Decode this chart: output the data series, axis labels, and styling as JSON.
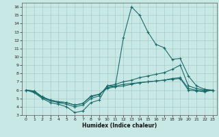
{
  "xlabel": "Humidex (Indice chaleur)",
  "x_ticks": [
    0,
    1,
    2,
    3,
    4,
    5,
    6,
    7,
    8,
    9,
    10,
    11,
    12,
    13,
    14,
    15,
    16,
    17,
    18,
    19,
    20,
    21,
    22,
    23
  ],
  "xlim": [
    -0.5,
    23.5
  ],
  "ylim": [
    3,
    16.5
  ],
  "y_ticks": [
    3,
    4,
    5,
    6,
    7,
    8,
    9,
    10,
    11,
    12,
    13,
    14,
    15,
    16
  ],
  "bg_color": "#c8e8e5",
  "grid_color": "#a8ccc9",
  "line_color": "#1a6b6b",
  "lines": [
    [
      6.0,
      5.7,
      5.0,
      4.5,
      4.3,
      4.0,
      3.3,
      3.5,
      4.5,
      4.8,
      6.5,
      6.5,
      12.3,
      16.0,
      15.0,
      13.0,
      11.5,
      11.1,
      9.7,
      9.8,
      7.7,
      6.5,
      6.1,
      6.0
    ],
    [
      6.0,
      5.8,
      5.1,
      4.7,
      4.5,
      4.3,
      4.0,
      4.2,
      5.0,
      5.3,
      6.5,
      6.7,
      7.0,
      7.2,
      7.5,
      7.7,
      7.9,
      8.1,
      8.5,
      9.0,
      6.5,
      6.2,
      6.0,
      6.0
    ],
    [
      6.0,
      5.9,
      5.2,
      4.8,
      4.6,
      4.5,
      4.2,
      4.4,
      5.2,
      5.5,
      6.2,
      6.4,
      6.5,
      6.7,
      6.9,
      7.0,
      7.1,
      7.2,
      7.4,
      7.5,
      6.2,
      6.0,
      5.9,
      6.0
    ],
    [
      6.0,
      5.9,
      5.2,
      4.8,
      4.6,
      4.5,
      4.2,
      4.4,
      5.3,
      5.5,
      6.3,
      6.5,
      6.7,
      6.8,
      6.9,
      7.0,
      7.1,
      7.2,
      7.3,
      7.4,
      6.0,
      5.9,
      5.8,
      6.0
    ]
  ]
}
